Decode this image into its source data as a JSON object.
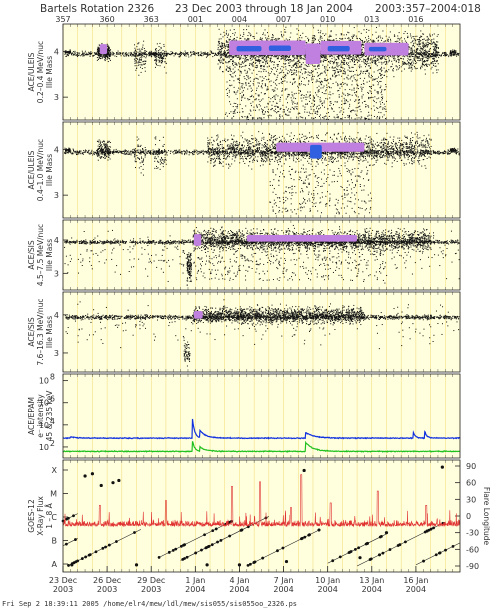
{
  "header": {
    "rotation": "Bartels Rotation 2326",
    "dates": "23 Dec 2003 through 18 Jan 2004",
    "doy_range": "2003:357–2004:018"
  },
  "footer": "Fri Sep  2 18:39:11 2005    /home/elr4/mew/ldl/mew/sis055/sis055oo_2326.ps",
  "chart_data": {
    "type": "scatter",
    "top_ticks": [
      "357",
      "360",
      "363",
      "001",
      "004",
      "007",
      "010",
      "013",
      "016"
    ],
    "x_ticks": [
      {
        "l1": "23 Dec",
        "l2": "2003"
      },
      {
        "l1": "26 Dec",
        "l2": "2003"
      },
      {
        "l1": "29 Dec",
        "l2": "2003"
      },
      {
        "l1": "1 Jan",
        "l2": "2004"
      },
      {
        "l1": "4 Jan",
        "l2": "2004"
      },
      {
        "l1": "7 Jan",
        "l2": "2004"
      },
      {
        "l1": "10 Jan",
        "l2": "2004"
      },
      {
        "l1": "13 Jan",
        "l2": "2004"
      },
      {
        "l1": "16 Jan",
        "l2": "2004"
      }
    ],
    "x_range_days": [
      0,
      27
    ],
    "panels": [
      {
        "ylabel": [
          "ACE/ULEIS",
          "0.2–0.4 MeV/nuc",
          "Ille Mass"
        ],
        "yticks": [
          "4",
          "3"
        ],
        "yrange": [
          2.5,
          4.6
        ],
        "dense_tracks": [
          [
            0.3,
            4.0
          ],
          [
            2.5,
            4.05
          ],
          [
            6.0,
            3.95
          ],
          [
            14.0,
            4.0
          ],
          [
            20.0,
            4.0
          ],
          [
            26.5,
            4.0
          ]
        ],
        "bursts": [
          {
            "x0": 2.3,
            "x1": 3.2,
            "y": 4.0,
            "spread": 0.25,
            "n": 220
          },
          {
            "x0": 4.8,
            "x1": 5.6,
            "y": 3.9,
            "spread": 0.5,
            "n": 90
          },
          {
            "x0": 6.2,
            "x1": 7.0,
            "y": 3.9,
            "spread": 0.4,
            "n": 100
          },
          {
            "x0": 10.5,
            "x1": 25.5,
            "y": 4.0,
            "spread": 0.6,
            "n": 2600
          }
        ],
        "tail": {
          "x0": 11.0,
          "x1": 22.0,
          "y0": 3.6,
          "y1": 2.5,
          "n": 900
        },
        "core": [
          {
            "x0": 2.5,
            "x1": 3.0,
            "y": 4.05,
            "h": 0.22,
            "c": "#c080e0"
          },
          {
            "x0": 11.3,
            "x1": 16.5,
            "y": 4.08,
            "h": 0.32,
            "c": "#c080e0"
          },
          {
            "x0": 16.5,
            "x1": 17.5,
            "y": 3.95,
            "h": 0.45,
            "c": "#c080e0"
          },
          {
            "x0": 17.5,
            "x1": 20.3,
            "y": 4.08,
            "h": 0.3,
            "c": "#c080e0"
          },
          {
            "x0": 20.5,
            "x1": 23.5,
            "y": 4.05,
            "h": 0.28,
            "c": "#c080e0"
          },
          {
            "x0": 11.8,
            "x1": 13.5,
            "y": 4.06,
            "h": 0.12,
            "c": "#3060e0"
          },
          {
            "x0": 14.0,
            "x1": 15.5,
            "y": 4.07,
            "h": 0.12,
            "c": "#3060e0"
          },
          {
            "x0": 18.0,
            "x1": 19.5,
            "y": 4.06,
            "h": 0.12,
            "c": "#3060e0"
          },
          {
            "x0": 20.8,
            "x1": 22.0,
            "y": 4.05,
            "h": 0.1,
            "c": "#3060e0"
          }
        ]
      },
      {
        "ylabel": [
          "ACE/ULEIS",
          "0.4–1.0 MeV/nuc",
          "Ille Mass"
        ],
        "yticks": [
          "4",
          "3"
        ],
        "yrange": [
          2.5,
          4.6
        ],
        "dense_tracks": [
          [
            0.3,
            4.0
          ],
          [
            26.5,
            4.0
          ]
        ],
        "bursts": [
          {
            "x0": 2.3,
            "x1": 3.2,
            "y": 4.0,
            "spread": 0.3,
            "n": 160
          },
          {
            "x0": 4.8,
            "x1": 5.6,
            "y": 3.9,
            "spread": 0.5,
            "n": 60
          },
          {
            "x0": 6.2,
            "x1": 7.0,
            "y": 3.9,
            "spread": 0.5,
            "n": 60
          },
          {
            "x0": 9.8,
            "x1": 25.0,
            "y": 4.0,
            "spread": 0.45,
            "n": 1800
          }
        ],
        "tail": {
          "x0": 14.0,
          "x1": 21.0,
          "y0": 3.6,
          "y1": 2.6,
          "n": 300
        },
        "core": [
          {
            "x0": 14.5,
            "x1": 20.5,
            "y": 4.05,
            "h": 0.2,
            "c": "#c080e0"
          },
          {
            "x0": 16.8,
            "x1": 17.6,
            "y": 3.95,
            "h": 0.3,
            "c": "#3060e0"
          }
        ]
      },
      {
        "ylabel": [
          "ACE/SIS",
          "4.5–7.5 MeV/nuc",
          "Ille Mass"
        ],
        "yticks": [
          "4",
          "3"
        ],
        "yrange": [
          2.5,
          4.6
        ],
        "dense_tracks": [],
        "bursts": [
          {
            "x0": 0.0,
            "x1": 27.0,
            "y": 3.6,
            "spread": 1.0,
            "n": 350
          },
          {
            "x0": 8.8,
            "x1": 25.0,
            "y": 4.0,
            "spread": 0.45,
            "n": 2200
          },
          {
            "x0": 8.4,
            "x1": 8.7,
            "y": 3.2,
            "spread": 0.6,
            "n": 120
          }
        ],
        "tail": {
          "x0": 9.0,
          "x1": 22.0,
          "y0": 3.6,
          "y1": 2.8,
          "n": 250
        },
        "core": [
          {
            "x0": 8.9,
            "x1": 9.4,
            "y": 4.0,
            "h": 0.35,
            "c": "#c080e0"
          },
          {
            "x0": 12.5,
            "x1": 20.0,
            "y": 4.05,
            "h": 0.2,
            "c": "#c080e0"
          }
        ]
      },
      {
        "ylabel": [
          "ACE/SIS",
          "7.6–16.3 MeV/nuc",
          "Ille Mass"
        ],
        "yticks": [
          "4",
          "3"
        ],
        "yrange": [
          2.5,
          4.6
        ],
        "dense_tracks": [],
        "bursts": [
          {
            "x0": 0.0,
            "x1": 27.0,
            "y": 3.8,
            "spread": 0.8,
            "n": 220
          },
          {
            "x0": 8.8,
            "x1": 20.5,
            "y": 4.0,
            "spread": 0.3,
            "n": 1500
          },
          {
            "x0": 8.2,
            "x1": 8.6,
            "y": 3.0,
            "spread": 0.5,
            "n": 60
          }
        ],
        "tail": null,
        "core": [
          {
            "x0": 8.9,
            "x1": 9.5,
            "y": 4.0,
            "h": 0.2,
            "c": "#c080e0"
          }
        ]
      }
    ],
    "epam": {
      "ylabel": [
        "ACE/EPAM",
        "e⁻ intensity",
        "45 & 235 keV"
      ],
      "yticks_exp": [
        2,
        4,
        6,
        8
      ],
      "yrange_log": [
        1.0,
        8.6
      ],
      "series": [
        {
          "name": "45 keV",
          "color": "#1030e0",
          "base": 2.8,
          "bumps": [
            {
              "t": 0.5,
              "h": 0.1,
              "w": 0.5
            },
            {
              "t": 8.8,
              "h": 1.8,
              "w": 0.15
            },
            {
              "t": 9.3,
              "h": 0.7,
              "w": 0.4
            },
            {
              "t": 16.5,
              "h": 0.5,
              "w": 0.6
            },
            {
              "t": 23.8,
              "h": 0.6,
              "w": 0.15
            },
            {
              "t": 24.6,
              "h": 0.6,
              "w": 0.15
            }
          ]
        },
        {
          "name": "235 keV",
          "color": "#20c020",
          "base": 1.6,
          "bumps": [
            {
              "t": 8.8,
              "h": 1.0,
              "w": 0.15
            },
            {
              "t": 9.3,
              "h": 0.4,
              "w": 0.4
            },
            {
              "t": 16.5,
              "h": 0.8,
              "w": 0.5
            }
          ]
        }
      ]
    },
    "goes": {
      "ylabel": [
        "GOES-12",
        "X-Ray Flux",
        "1 – 8 Å"
      ],
      "left_ticks": [
        "X",
        "M",
        "C",
        "B",
        "A"
      ],
      "right_label": "Flare Longitude",
      "right_ticks": [
        "90",
        "60",
        "30",
        "0",
        "-30",
        "-60",
        "-90"
      ],
      "flux_color": "#e03030",
      "flux_base": 1.6,
      "flux_spikes": [
        {
          "t": 16.2,
          "h": 2.2
        },
        {
          "t": 13.4,
          "h": 1.9
        },
        {
          "t": 11.5,
          "h": 1.7
        },
        {
          "t": 21.4,
          "h": 1.5
        },
        {
          "t": 7.0,
          "h": 1.1
        },
        {
          "t": 18.2,
          "h": 1.0
        },
        {
          "t": 2.5,
          "h": 0.9
        },
        {
          "t": 24.7,
          "h": 0.9
        },
        {
          "t": 15.5,
          "h": 0.8
        }
      ],
      "flare_tracks": [
        [
          -5,
          -75,
          6
        ],
        [
          -2,
          -80,
          3
        ],
        [
          0.3,
          -90,
          5
        ],
        [
          6.5,
          -75,
          5
        ],
        [
          8.0,
          -80,
          6
        ],
        [
          12.5,
          -90,
          5
        ],
        [
          18.0,
          -85,
          4
        ],
        [
          20.0,
          -90,
          6
        ],
        [
          24.0,
          -88,
          4
        ]
      ],
      "flare_dots": [
        [
          1.5,
          72
        ],
        [
          2.0,
          76
        ],
        [
          2.6,
          55
        ],
        [
          3.4,
          60
        ],
        [
          3.8,
          64
        ],
        [
          9.8,
          -88
        ],
        [
          12.0,
          -88
        ],
        [
          15.2,
          -82
        ],
        [
          16.4,
          82
        ],
        [
          20.2,
          -75
        ],
        [
          22.0,
          -30
        ],
        [
          25.8,
          88
        ],
        [
          0.6,
          -88
        ],
        [
          5.0,
          -88
        ]
      ]
    }
  }
}
